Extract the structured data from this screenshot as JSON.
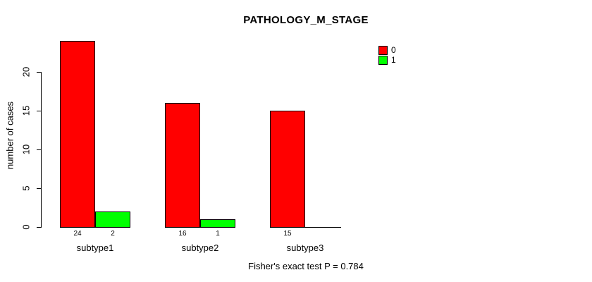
{
  "figure": {
    "title": "PATHOLOGY_M_STAGE",
    "ylabel": "number of cases",
    "footer": "Fisher's exact test P = 0.784",
    "background_color": "#FFFFFF",
    "text_color": "#000000"
  },
  "legend": {
    "position": "top-right",
    "items": [
      {
        "label": "0",
        "color": "#FF0000"
      },
      {
        "label": "1",
        "color": "#00FF00"
      }
    ]
  },
  "chart_data": {
    "type": "bar",
    "title": "PATHOLOGY_M_STAGE",
    "xlabel": "",
    "ylabel": "number of cases",
    "categories": [
      "subtype1",
      "subtype2",
      "subtype3"
    ],
    "series": [
      {
        "name": "0",
        "color": "#FF0000",
        "values": [
          24,
          16,
          15
        ]
      },
      {
        "name": "1",
        "color": "#00FF00",
        "values": [
          2,
          1,
          0
        ]
      }
    ],
    "bar_value_labels": [
      [
        "24",
        "2"
      ],
      [
        "16",
        "1"
      ],
      [
        "15",
        ""
      ]
    ],
    "yticks": [
      0,
      5,
      10,
      15,
      20
    ],
    "ylim": [
      0,
      24
    ],
    "grid": false,
    "legend_position": "top-right",
    "bar_border_color": "#000000",
    "annotation": "Fisher's exact test P = 0.784"
  }
}
